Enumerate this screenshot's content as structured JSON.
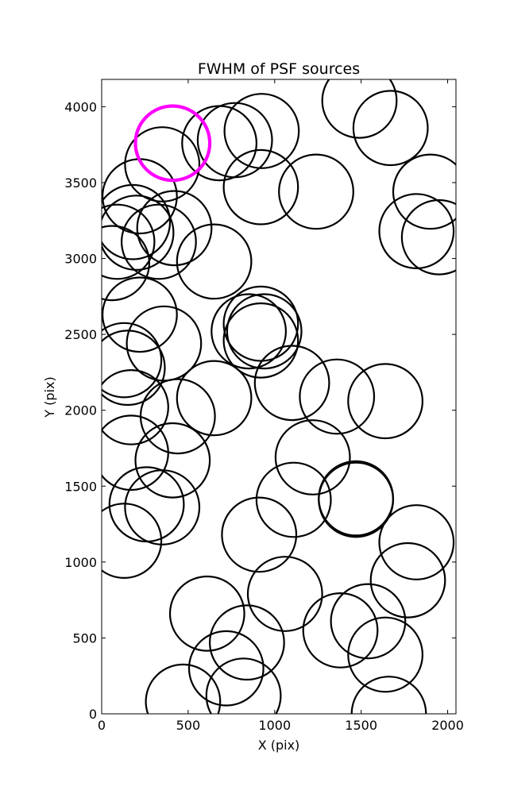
{
  "chart_data": {
    "type": "scatter",
    "title": "FWHM of PSF sources",
    "xlabel": "X (pix)",
    "ylabel": "Y (pix)",
    "xlim": [
      0,
      2048
    ],
    "ylim": [
      0,
      4180
    ],
    "xticks": [
      0,
      500,
      1000,
      1500,
      2000
    ],
    "yticks": [
      0,
      500,
      1000,
      1500,
      2000,
      2500,
      3000,
      3500,
      4000
    ],
    "grid": false,
    "marker": "circle",
    "marker_radius_data_units": 215,
    "series": [
      {
        "color": "#000000",
        "points": [
          [
            1490,
            4040
          ],
          [
            1670,
            3860
          ],
          [
            925,
            3840
          ],
          [
            770,
            3780
          ],
          [
            680,
            3760
          ],
          [
            350,
            3620
          ],
          [
            920,
            3470
          ],
          [
            1240,
            3440
          ],
          [
            1900,
            3440
          ],
          [
            220,
            3410
          ],
          [
            1820,
            3180
          ],
          [
            1950,
            3140
          ],
          [
            180,
            3240
          ],
          [
            200,
            3170
          ],
          [
            420,
            3200
          ],
          [
            330,
            3110
          ],
          [
            90,
            3110
          ],
          [
            60,
            2970
          ],
          [
            650,
            2980
          ],
          [
            220,
            2630
          ],
          [
            920,
            2570
          ],
          [
            850,
            2520
          ],
          [
            940,
            2520
          ],
          [
            920,
            2460
          ],
          [
            1100,
            2180
          ],
          [
            360,
            2440
          ],
          [
            130,
            2330
          ],
          [
            150,
            2280
          ],
          [
            170,
            2020
          ],
          [
            440,
            1960
          ],
          [
            650,
            2080
          ],
          [
            1360,
            2090
          ],
          [
            1640,
            2060
          ],
          [
            1220,
            1690
          ],
          [
            170,
            1720
          ],
          [
            410,
            1670
          ],
          [
            1470,
            1410
          ],
          [
            1470,
            1420
          ],
          [
            1110,
            1410
          ],
          [
            260,
            1380
          ],
          [
            350,
            1360
          ],
          [
            130,
            1140
          ],
          [
            910,
            1180
          ],
          [
            1820,
            1130
          ],
          [
            1770,
            880
          ],
          [
            1060,
            790
          ],
          [
            1380,
            550
          ],
          [
            1540,
            610
          ],
          [
            1640,
            390
          ],
          [
            610,
            660
          ],
          [
            840,
            470
          ],
          [
            720,
            300
          ],
          [
            820,
            120
          ],
          [
            1660,
            0
          ],
          [
            470,
            80
          ]
        ]
      },
      {
        "color": "#ff00ff",
        "points": [
          [
            410,
            3760
          ]
        ]
      }
    ]
  }
}
